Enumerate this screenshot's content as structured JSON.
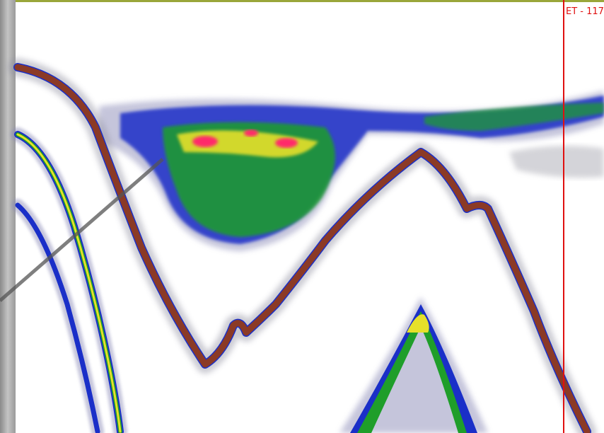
{
  "marker_label": "ET - 117"
}
